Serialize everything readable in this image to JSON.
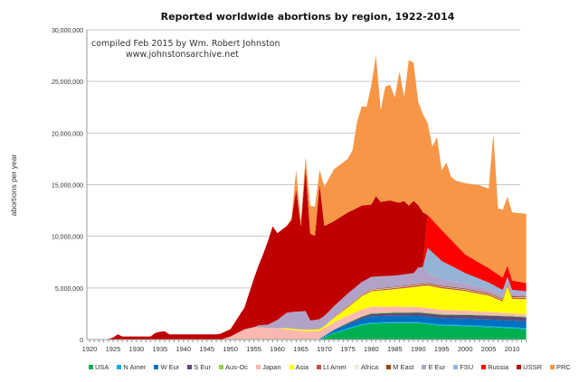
{
  "chart_data": {
    "type": "area",
    "stacked": true,
    "title": "Reported worldwide abortions by region, 1922-2014",
    "annotation": [
      "compiled Feb 2015 by Wm. Robert Johnston",
      "www.johnstonsarchive.net"
    ],
    "xlabel": "",
    "ylabel": "abortions per year",
    "xlim": [
      1920,
      2014
    ],
    "ylim": [
      0,
      30000000
    ],
    "x_ticks": [
      "1920",
      "1925",
      "1930",
      "1935",
      "1940",
      "1945",
      "1950",
      "1955",
      "1960",
      "1965",
      "1970",
      "1975",
      "1980",
      "1985",
      "1990",
      "1995",
      "2000",
      "2005",
      "2010"
    ],
    "y_ticks": [
      "0",
      "5,000,000",
      "10,000,000",
      "15,000,000",
      "20,000,000",
      "25,000,000",
      "30,000,000"
    ],
    "grid": "horizontal",
    "legend_position": "bottom",
    "series": [
      {
        "name": "USA",
        "color": "#00b050",
        "points": [
          [
            1969,
            0
          ],
          [
            1970,
            200000
          ],
          [
            1972,
            600000
          ],
          [
            1975,
            1000000
          ],
          [
            1978,
            1400000
          ],
          [
            1980,
            1550000
          ],
          [
            1985,
            1600000
          ],
          [
            1990,
            1600000
          ],
          [
            1995,
            1350000
          ],
          [
            2000,
            1300000
          ],
          [
            2005,
            1200000
          ],
          [
            2010,
            1100000
          ],
          [
            2013,
            1000000
          ]
        ]
      },
      {
        "name": "N Amer",
        "color": "#00b0f0",
        "points": [
          [
            1969,
            0
          ],
          [
            1970,
            50000
          ],
          [
            1975,
            100000
          ],
          [
            2013,
            100000
          ]
        ]
      },
      {
        "name": "W Eur",
        "color": "#0070c0",
        "points": [
          [
            1967,
            0
          ],
          [
            1970,
            100000
          ],
          [
            1972,
            250000
          ],
          [
            1975,
            400000
          ],
          [
            1980,
            600000
          ],
          [
            2013,
            650000
          ]
        ]
      },
      {
        "name": "S Eur",
        "color": "#604a7b",
        "points": [
          [
            1971,
            0
          ],
          [
            1975,
            100000
          ],
          [
            1980,
            250000
          ],
          [
            1990,
            300000
          ],
          [
            2000,
            350000
          ],
          [
            2013,
            400000
          ]
        ]
      },
      {
        "name": "Aus-Oc",
        "color": "#92d050",
        "points": [
          [
            1971,
            0
          ],
          [
            1975,
            50000
          ],
          [
            1980,
            80000
          ],
          [
            2013,
            80000
          ]
        ]
      },
      {
        "name": "Japan",
        "color": "#f9b9b2",
        "points": [
          [
            1948,
            0
          ],
          [
            1950,
            300000
          ],
          [
            1953,
            1000000
          ],
          [
            1955,
            1200000
          ],
          [
            1960,
            1100000
          ],
          [
            1965,
            850000
          ],
          [
            1970,
            750000
          ],
          [
            1975,
            670000
          ],
          [
            1980,
            600000
          ],
          [
            1990,
            450000
          ],
          [
            2000,
            340000
          ],
          [
            2013,
            200000
          ]
        ]
      },
      {
        "name": "Asia",
        "color": "#ffff00",
        "points": [
          [
            1960,
            0
          ],
          [
            1962,
            100000
          ],
          [
            1968,
            150000
          ],
          [
            1970,
            200000
          ],
          [
            1972,
            400000
          ],
          [
            1975,
            800000
          ],
          [
            1978,
            1300000
          ],
          [
            1980,
            1500000
          ],
          [
            1985,
            1700000
          ],
          [
            1990,
            2000000
          ],
          [
            1992,
            2200000
          ],
          [
            1995,
            2100000
          ],
          [
            2000,
            1900000
          ],
          [
            2005,
            1600000
          ],
          [
            2008,
            1100000
          ],
          [
            2009,
            2600000
          ],
          [
            2010,
            1400000
          ],
          [
            2013,
            1500000
          ]
        ]
      },
      {
        "name": "Lt Amer",
        "color": "#c0504d",
        "points": [
          [
            1970,
            0
          ],
          [
            1975,
            80000
          ],
          [
            1980,
            100000
          ],
          [
            1990,
            120000
          ],
          [
            2013,
            120000
          ]
        ]
      },
      {
        "name": "Africa",
        "color": "#eeece1",
        "points": [
          [
            1970,
            0
          ],
          [
            1975,
            30000
          ],
          [
            1980,
            50000
          ],
          [
            2013,
            50000
          ]
        ]
      },
      {
        "name": "M East",
        "color": "#984807",
        "points": [
          [
            1970,
            0
          ],
          [
            1975,
            30000
          ],
          [
            1980,
            50000
          ],
          [
            1995,
            70000
          ],
          [
            2013,
            80000
          ]
        ]
      },
      {
        "name": "E Eur",
        "color": "#b3a2c7",
        "points": [
          [
            1955,
            0
          ],
          [
            1956,
            200000
          ],
          [
            1958,
            300000
          ],
          [
            1960,
            800000
          ],
          [
            1962,
            1500000
          ],
          [
            1964,
            1700000
          ],
          [
            1966,
            1800000
          ],
          [
            1967,
            900000
          ],
          [
            1970,
            1000000
          ],
          [
            1975,
            1200000
          ],
          [
            1980,
            1200000
          ],
          [
            1985,
            1100000
          ],
          [
            1989,
            1100000
          ],
          [
            1990,
            1600000
          ],
          [
            1991,
            1600000
          ],
          [
            1992,
            1000000
          ],
          [
            1995,
            600000
          ],
          [
            2000,
            500000
          ],
          [
            2005,
            400000
          ],
          [
            2013,
            300000
          ]
        ]
      },
      {
        "name": "FSU",
        "color": "#95b3d7",
        "points": [
          [
            1992,
            2400000
          ],
          [
            1995,
            1800000
          ],
          [
            2000,
            1000000
          ],
          [
            2005,
            600000
          ],
          [
            2008,
            500000
          ],
          [
            2009,
            300000
          ],
          [
            2013,
            200000
          ]
        ]
      },
      {
        "name": "Russia",
        "color": "#ff0000",
        "points": [
          [
            1992,
            3200000
          ],
          [
            1995,
            3000000
          ],
          [
            2000,
            1800000
          ],
          [
            2005,
            1400000
          ],
          [
            2008,
            1200000
          ],
          [
            2009,
            1100000
          ],
          [
            2010,
            900000
          ],
          [
            2013,
            800000
          ]
        ]
      },
      {
        "name": "USSR",
        "color": "#c00000",
        "points": [
          [
            1922,
            0
          ],
          [
            1924,
            50000
          ],
          [
            1925,
            200000
          ],
          [
            1926,
            500000
          ],
          [
            1927,
            300000
          ],
          [
            1933,
            300000
          ],
          [
            1934,
            650000
          ],
          [
            1935,
            750000
          ],
          [
            1936,
            800000
          ],
          [
            1937,
            500000
          ],
          [
            1947,
            500000
          ],
          [
            1949,
            650000
          ],
          [
            1950,
            700000
          ],
          [
            1953,
            2100000
          ],
          [
            1955,
            4700000
          ],
          [
            1957,
            6900000
          ],
          [
            1959,
            9300000
          ],
          [
            1960,
            8400000
          ],
          [
            1962,
            8400000
          ],
          [
            1963,
            8900000
          ],
          [
            1964,
            11800000
          ],
          [
            1965,
            8250000
          ],
          [
            1966,
            13900000
          ],
          [
            1967,
            8400000
          ],
          [
            1968,
            8150000
          ],
          [
            1969,
            13050000
          ],
          [
            1970,
            8700000
          ],
          [
            1972,
            8250000
          ],
          [
            1975,
            7850000
          ],
          [
            1978,
            7400000
          ],
          [
            1980,
            7000000
          ],
          [
            1981,
            7800000
          ],
          [
            1982,
            7200000
          ],
          [
            1984,
            7300000
          ],
          [
            1986,
            7000000
          ],
          [
            1987,
            7100000
          ],
          [
            1988,
            6600000
          ],
          [
            1989,
            7000000
          ],
          [
            1990,
            6050000
          ],
          [
            1991,
            5300000
          ]
        ]
      },
      {
        "name": "PRC",
        "color": "#f79646",
        "points": [
          [
            1962,
            0
          ],
          [
            1963,
            200000
          ],
          [
            1964,
            1900000
          ],
          [
            1965,
            500000
          ],
          [
            1966,
            1000000
          ],
          [
            1967,
            2700000
          ],
          [
            1968,
            2800000
          ],
          [
            1969,
            1400000
          ],
          [
            1970,
            3800000
          ],
          [
            1972,
            5000000
          ],
          [
            1975,
            5200000
          ],
          [
            1976,
            5800000
          ],
          [
            1977,
            8400000
          ],
          [
            1978,
            9600000
          ],
          [
            1979,
            9500000
          ],
          [
            1981,
            13600000
          ],
          [
            1982,
            8900000
          ],
          [
            1983,
            11100000
          ],
          [
            1984,
            11200000
          ],
          [
            1985,
            10100000
          ],
          [
            1986,
            12700000
          ],
          [
            1987,
            10100000
          ],
          [
            1988,
            14100000
          ],
          [
            1989,
            13400000
          ],
          [
            1990,
            10000000
          ],
          [
            1991,
            9500000
          ],
          [
            1992,
            8900000
          ],
          [
            1993,
            7100000
          ],
          [
            1994,
            8500000
          ],
          [
            1995,
            5800000
          ],
          [
            1996,
            7000000
          ],
          [
            1997,
            6100000
          ],
          [
            1998,
            6200000
          ],
          [
            2000,
            6900000
          ],
          [
            2003,
            7500000
          ],
          [
            2005,
            7700000
          ],
          [
            2006,
            13300000
          ],
          [
            2007,
            6400000
          ],
          [
            2008,
            6550000
          ],
          [
            2009,
            6650000
          ],
          [
            2010,
            6600000
          ],
          [
            2013,
            6700000
          ]
        ]
      }
    ]
  }
}
